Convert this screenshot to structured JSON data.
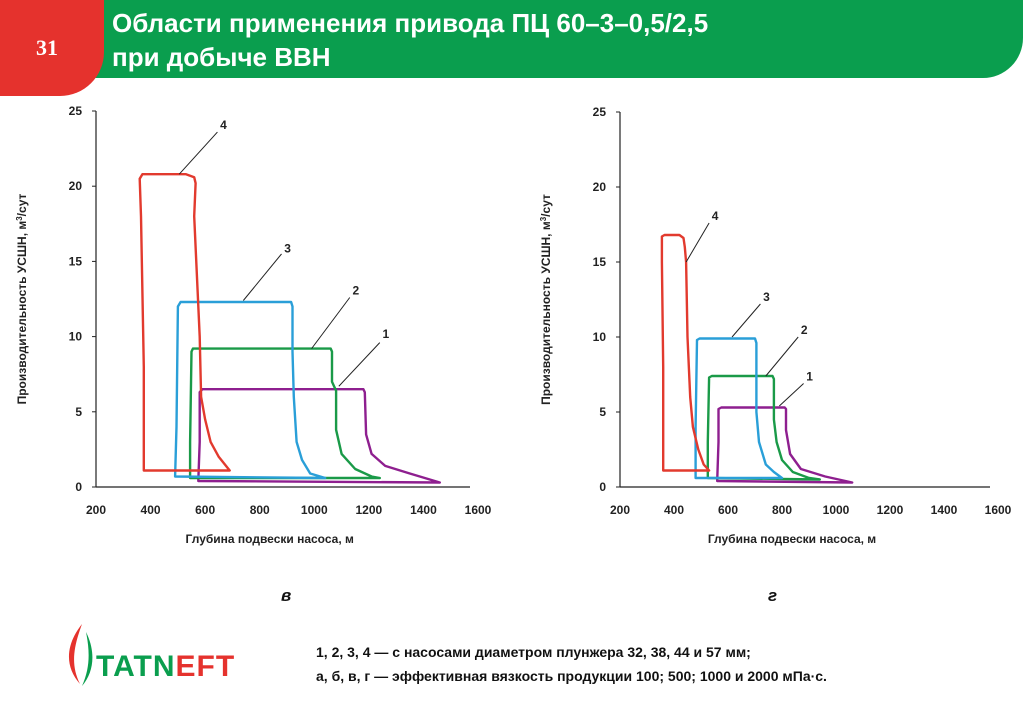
{
  "slide": {
    "number": "31",
    "title_line1": "Области применения привода ПЦ 60–3–0,5/2,5",
    "title_line2": "при добыче ВВН"
  },
  "colors": {
    "header_green": "#0a9e4e",
    "badge_red": "#e5322d",
    "series_1": "#8e1f8f",
    "series_2": "#1a9a48",
    "series_3": "#2a9fd8",
    "series_4": "#e23a2e"
  },
  "chart_data": [
    {
      "type": "area",
      "panel_label": "в",
      "xlabel": "Глубина подвески насоса, м",
      "ylabel_main": "Производительность УСШН, м",
      "ylabel_sup": "3",
      "ylabel_tail": "/сут",
      "xticks": [
        "200",
        "400",
        "600",
        "800",
        "1000",
        "1200",
        "1400",
        "1600"
      ],
      "yticks": [
        "0",
        "5",
        "10",
        "15",
        "20",
        "25"
      ],
      "xlim": [
        200,
        1600
      ],
      "ylim": [
        0,
        25
      ],
      "series": [
        {
          "name": "1",
          "points": [
            [
              575,
              0.4
            ],
            [
              580,
              3
            ],
            [
              580,
              6.3
            ],
            [
              590,
              6.5
            ],
            [
              1180,
              6.5
            ],
            [
              1185,
              6.3
            ],
            [
              1190,
              3.5
            ],
            [
              1210,
              2.2
            ],
            [
              1260,
              1.4
            ],
            [
              1350,
              0.9
            ],
            [
              1460,
              0.3
            ],
            [
              575,
              0.4
            ]
          ],
          "label_pt": [
            1090,
            6.7
          ],
          "leader_end": [
            1240,
            9.6
          ],
          "label_text_pt": [
            1250,
            9.9
          ]
        },
        {
          "name": "2",
          "points": [
            [
              545,
              0.6
            ],
            [
              545,
              3
            ],
            [
              550,
              9
            ],
            [
              555,
              9.2
            ],
            [
              1060,
              9.2
            ],
            [
              1065,
              9
            ],
            [
              1065,
              7
            ],
            [
              1080,
              6.4
            ],
            [
              1080,
              3.8
            ],
            [
              1100,
              2.2
            ],
            [
              1150,
              1.2
            ],
            [
              1210,
              0.7
            ],
            [
              1240,
              0.6
            ],
            [
              545,
              0.6
            ]
          ],
          "label_pt": [
            990,
            9.2
          ],
          "leader_end": [
            1130,
            12.6
          ],
          "label_text_pt": [
            1140,
            12.8
          ]
        },
        {
          "name": "3",
          "points": [
            [
              490,
              0.7
            ],
            [
              495,
              4
            ],
            [
              500,
              12
            ],
            [
              510,
              12.3
            ],
            [
              915,
              12.3
            ],
            [
              920,
              12
            ],
            [
              920,
              9
            ],
            [
              925,
              6
            ],
            [
              935,
              3
            ],
            [
              955,
              1.8
            ],
            [
              985,
              0.9
            ],
            [
              1040,
              0.6
            ],
            [
              490,
              0.7
            ]
          ],
          "label_pt": [
            740,
            12.4
          ],
          "leader_end": [
            880,
            15.5
          ],
          "label_text_pt": [
            890,
            15.6
          ]
        },
        {
          "name": "4",
          "points": [
            [
              375,
              1.1
            ],
            [
              375,
              8
            ],
            [
              365,
              18
            ],
            [
              360,
              20.5
            ],
            [
              370,
              20.8
            ],
            [
              530,
              20.8
            ],
            [
              560,
              20.6
            ],
            [
              565,
              20.2
            ],
            [
              560,
              18
            ],
            [
              580,
              10
            ],
            [
              585,
              6
            ],
            [
              600,
              4.5
            ],
            [
              620,
              3
            ],
            [
              650,
              2
            ],
            [
              690,
              1.1
            ],
            [
              375,
              1.1
            ]
          ],
          "label_pt": [
            505,
            20.8
          ],
          "leader_end": [
            645,
            23.6
          ],
          "label_text_pt": [
            655,
            23.8
          ]
        }
      ]
    },
    {
      "type": "area",
      "panel_label": "г",
      "xlabel": "Глубина подвески насоса, м",
      "ylabel_main": "Производительность УСШН, м",
      "ylabel_sup": "3",
      "ylabel_tail": "/сут",
      "xticks": [
        "200",
        "400",
        "600",
        "800",
        "1000",
        "1200",
        "1400",
        "1600"
      ],
      "yticks": [
        "0",
        "5",
        "10",
        "15",
        "20",
        "25"
      ],
      "xlim": [
        200,
        1600
      ],
      "ylim": [
        0,
        25
      ],
      "series": [
        {
          "name": "1",
          "points": [
            [
              560,
              0.4
            ],
            [
              565,
              3
            ],
            [
              565,
              5.2
            ],
            [
              575,
              5.3
            ],
            [
              810,
              5.3
            ],
            [
              815,
              5.2
            ],
            [
              815,
              3.8
            ],
            [
              830,
              2.2
            ],
            [
              870,
              1.2
            ],
            [
              960,
              0.7
            ],
            [
              1060,
              0.3
            ],
            [
              560,
              0.4
            ]
          ],
          "label_pt": [
            790,
            5.4
          ],
          "leader_end": [
            880,
            6.9
          ],
          "label_text_pt": [
            890,
            7.1
          ]
        },
        {
          "name": "2",
          "points": [
            [
              525,
              0.6
            ],
            [
              525,
              3
            ],
            [
              530,
              7.3
            ],
            [
              540,
              7.4
            ],
            [
              765,
              7.4
            ],
            [
              770,
              7.2
            ],
            [
              770,
              4.5
            ],
            [
              780,
              3
            ],
            [
              800,
              1.8
            ],
            [
              840,
              1
            ],
            [
              900,
              0.6
            ],
            [
              940,
              0.5
            ],
            [
              525,
              0.6
            ]
          ],
          "label_pt": [
            740,
            7.4
          ],
          "leader_end": [
            860,
            10
          ],
          "label_text_pt": [
            870,
            10.2
          ]
        },
        {
          "name": "3",
          "points": [
            [
              480,
              0.6
            ],
            [
              480,
              4
            ],
            [
              485,
              9.8
            ],
            [
              495,
              9.9
            ],
            [
              700,
              9.9
            ],
            [
              705,
              9.6
            ],
            [
              705,
              5
            ],
            [
              715,
              3
            ],
            [
              740,
              1.5
            ],
            [
              770,
              1
            ],
            [
              800,
              0.6
            ],
            [
              480,
              0.6
            ]
          ],
          "label_pt": [
            615,
            10
          ],
          "leader_end": [
            720,
            12.2
          ],
          "label_text_pt": [
            730,
            12.4
          ]
        },
        {
          "name": "4",
          "points": [
            [
              360,
              1.1
            ],
            [
              360,
              8
            ],
            [
              355,
              15
            ],
            [
              355,
              16.7
            ],
            [
              365,
              16.8
            ],
            [
              420,
              16.8
            ],
            [
              435,
              16.6
            ],
            [
              440,
              16
            ],
            [
              445,
              15
            ],
            [
              450,
              10
            ],
            [
              460,
              6
            ],
            [
              470,
              4
            ],
            [
              490,
              2.5
            ],
            [
              510,
              1.5
            ],
            [
              530,
              1.1
            ],
            [
              360,
              1.1
            ]
          ],
          "label_pt": [
            445,
            15
          ],
          "leader_end": [
            530,
            17.6
          ],
          "label_text_pt": [
            540,
            17.8
          ]
        }
      ]
    }
  ],
  "panels": {
    "left_letter": "в",
    "right_letter": "г"
  },
  "caption": {
    "line1": "1, 2, 3, 4 — с насосами диаметром плунжера 32, 38, 44 и 57 мм;",
    "line2": "а, б, в, г — эффективная вязкость продукции 100; 500; 1000 и 2000 мПа·с."
  },
  "logo": {
    "text_part1": "TATN",
    "text_part2": "EFT",
    "icon": "oil-drop-flame-icon"
  }
}
